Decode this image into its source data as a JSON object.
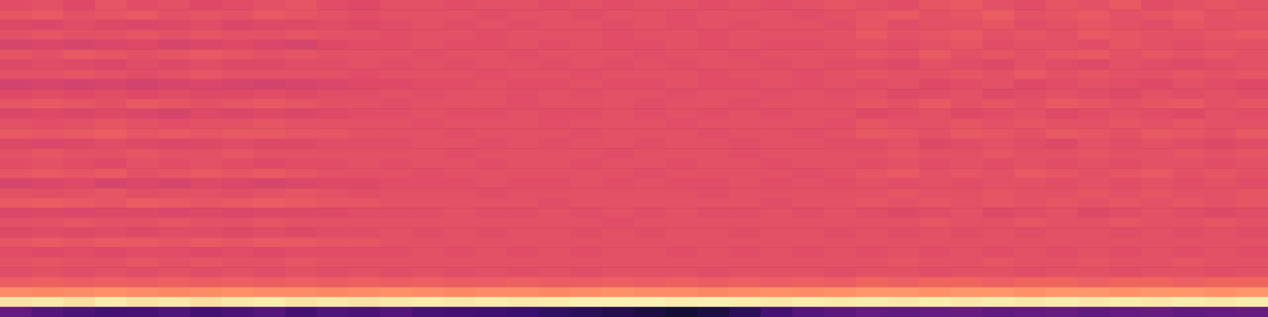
{
  "chart_data": {
    "type": "heatmap",
    "color": "magma",
    "color_range": [
      0,
      100
    ],
    "tick_labels": false,
    "grid": false,
    "cells": [
      [
        61,
        62,
        60,
        63,
        61,
        62,
        60,
        61,
        62,
        63,
        61,
        60,
        62,
        62,
        61,
        62,
        62,
        61,
        62,
        61,
        62,
        62,
        61,
        62,
        61,
        62,
        63,
        62,
        61,
        63,
        64,
        62,
        61,
        63,
        62,
        64,
        61,
        62,
        63,
        62
      ],
      [
        63,
        64,
        62,
        63,
        64,
        62,
        63,
        62,
        64,
        63,
        62,
        61,
        62,
        62,
        62,
        61,
        62,
        62,
        61,
        62,
        62,
        61,
        62,
        62,
        62,
        61,
        62,
        63,
        64,
        62,
        63,
        65,
        62,
        63,
        64,
        62,
        63,
        64,
        62,
        63
      ],
      [
        60,
        59,
        61,
        60,
        59,
        60,
        61,
        59,
        60,
        60,
        61,
        60,
        61,
        62,
        61,
        62,
        61,
        62,
        62,
        61,
        62,
        61,
        62,
        61,
        62,
        62,
        61,
        63,
        61,
        62,
        62,
        63,
        61,
        62,
        63,
        62,
        61,
        63,
        62,
        62
      ],
      [
        62,
        63,
        62,
        62,
        63,
        62,
        63,
        62,
        62,
        63,
        62,
        62,
        61,
        62,
        62,
        61,
        62,
        62,
        62,
        61,
        62,
        62,
        61,
        62,
        62,
        62,
        62,
        64,
        62,
        63,
        64,
        62,
        63,
        62,
        64,
        63,
        62,
        62,
        63,
        64
      ],
      [
        58,
        59,
        58,
        59,
        60,
        58,
        59,
        60,
        59,
        58,
        60,
        61,
        61,
        62,
        61,
        61,
        62,
        61,
        62,
        61,
        61,
        62,
        61,
        62,
        61,
        61,
        62,
        62,
        61,
        62,
        63,
        61,
        62,
        62,
        61,
        63,
        62,
        61,
        62,
        62
      ],
      [
        63,
        62,
        64,
        63,
        62,
        63,
        64,
        63,
        62,
        63,
        62,
        62,
        62,
        61,
        62,
        62,
        61,
        62,
        62,
        62,
        61,
        62,
        62,
        61,
        62,
        62,
        62,
        63,
        62,
        64,
        62,
        63,
        62,
        63,
        64,
        62,
        63,
        62,
        63,
        62
      ],
      [
        60,
        61,
        60,
        59,
        61,
        60,
        61,
        60,
        60,
        61,
        61,
        62,
        61,
        62,
        61,
        62,
        62,
        61,
        62,
        61,
        62,
        61,
        62,
        62,
        61,
        62,
        61,
        61,
        60,
        62,
        61,
        60,
        62,
        61,
        60,
        62,
        61,
        60,
        61,
        62
      ],
      [
        62,
        62,
        63,
        62,
        61,
        62,
        63,
        62,
        62,
        62,
        62,
        61,
        62,
        62,
        62,
        61,
        62,
        62,
        61,
        62,
        62,
        62,
        61,
        62,
        62,
        61,
        62,
        63,
        62,
        62,
        63,
        62,
        64,
        62,
        63,
        62,
        62,
        63,
        62,
        63
      ],
      [
        57,
        58,
        57,
        58,
        57,
        58,
        59,
        58,
        57,
        58,
        59,
        60,
        60,
        61,
        61,
        62,
        61,
        61,
        62,
        61,
        61,
        62,
        61,
        61,
        62,
        61,
        62,
        61,
        62,
        60,
        61,
        62,
        60,
        61,
        62,
        61,
        60,
        62,
        61,
        60
      ],
      [
        60,
        61,
        60,
        61,
        60,
        61,
        60,
        60,
        61,
        60,
        61,
        61,
        62,
        61,
        62,
        62,
        61,
        62,
        61,
        62,
        62,
        61,
        62,
        62,
        61,
        62,
        61,
        62,
        60,
        61,
        62,
        60,
        61,
        62,
        61,
        60,
        62,
        61,
        62,
        61
      ],
      [
        63,
        64,
        63,
        62,
        64,
        63,
        62,
        63,
        64,
        63,
        62,
        62,
        61,
        62,
        62,
        62,
        61,
        62,
        62,
        62,
        61,
        62,
        62,
        61,
        62,
        62,
        62,
        63,
        62,
        64,
        62,
        63,
        62,
        64,
        63,
        62,
        63,
        64,
        62,
        63
      ],
      [
        59,
        60,
        59,
        60,
        59,
        58,
        60,
        59,
        60,
        59,
        60,
        61,
        61,
        62,
        61,
        61,
        62,
        61,
        61,
        62,
        61,
        62,
        61,
        62,
        61,
        62,
        62,
        60,
        61,
        62,
        60,
        61,
        62,
        60,
        61,
        62,
        61,
        60,
        62,
        61
      ],
      [
        62,
        61,
        62,
        63,
        62,
        61,
        62,
        62,
        63,
        62,
        62,
        62,
        62,
        61,
        62,
        62,
        62,
        61,
        62,
        62,
        62,
        61,
        62,
        62,
        62,
        62,
        61,
        63,
        62,
        62,
        63,
        62,
        63,
        62,
        62,
        63,
        62,
        63,
        62,
        62
      ],
      [
        64,
        63,
        64,
        65,
        63,
        64,
        63,
        64,
        64,
        63,
        63,
        62,
        62,
        62,
        61,
        62,
        62,
        62,
        61,
        62,
        62,
        62,
        61,
        62,
        62,
        61,
        62,
        64,
        63,
        62,
        64,
        63,
        62,
        64,
        63,
        62,
        64,
        63,
        62,
        64
      ],
      [
        60,
        59,
        60,
        61,
        60,
        59,
        60,
        61,
        60,
        60,
        61,
        61,
        61,
        62,
        62,
        61,
        62,
        61,
        62,
        62,
        61,
        62,
        62,
        61,
        62,
        62,
        61,
        61,
        62,
        60,
        61,
        62,
        61,
        60,
        62,
        61,
        62,
        61,
        60,
        61
      ],
      [
        62,
        63,
        62,
        62,
        63,
        62,
        62,
        63,
        62,
        62,
        62,
        62,
        62,
        62,
        61,
        62,
        62,
        62,
        62,
        61,
        62,
        62,
        62,
        61,
        62,
        62,
        62,
        62,
        63,
        62,
        62,
        63,
        62,
        62,
        63,
        62,
        62,
        63,
        62,
        63
      ],
      [
        61,
        62,
        61,
        60,
        62,
        61,
        62,
        61,
        60,
        61,
        61,
        62,
        61,
        62,
        62,
        61,
        62,
        62,
        61,
        62,
        62,
        61,
        62,
        62,
        61,
        62,
        62,
        61,
        62,
        61,
        62,
        61,
        62,
        61,
        62,
        61,
        62,
        62,
        61,
        62
      ],
      [
        63,
        64,
        63,
        64,
        62,
        63,
        64,
        63,
        64,
        63,
        62,
        62,
        62,
        61,
        62,
        62,
        62,
        62,
        62,
        62,
        61,
        62,
        62,
        62,
        62,
        61,
        62,
        63,
        64,
        62,
        63,
        62,
        64,
        63,
        62,
        63,
        64,
        62,
        63,
        62
      ],
      [
        58,
        59,
        60,
        58,
        59,
        58,
        60,
        59,
        58,
        59,
        60,
        60,
        61,
        61,
        61,
        62,
        61,
        61,
        62,
        61,
        62,
        61,
        61,
        62,
        61,
        62,
        61,
        62,
        61,
        62,
        61,
        62,
        62,
        61,
        62,
        61,
        62,
        61,
        62,
        61
      ],
      [
        62,
        61,
        62,
        63,
        61,
        62,
        62,
        61,
        62,
        63,
        62,
        61,
        62,
        62,
        62,
        61,
        62,
        62,
        62,
        62,
        62,
        62,
        61,
        62,
        62,
        62,
        62,
        62,
        63,
        62,
        62,
        63,
        62,
        62,
        63,
        62,
        63,
        62,
        62,
        63
      ],
      [
        64,
        65,
        64,
        63,
        65,
        64,
        63,
        64,
        65,
        64,
        63,
        63,
        62,
        62,
        62,
        62,
        62,
        61,
        62,
        62,
        62,
        62,
        62,
        62,
        61,
        62,
        62,
        63,
        62,
        63,
        62,
        63,
        62,
        63,
        62,
        63,
        62,
        63,
        62,
        63
      ],
      [
        59,
        60,
        59,
        60,
        60,
        59,
        60,
        59,
        60,
        60,
        60,
        61,
        61,
        61,
        62,
        61,
        61,
        62,
        61,
        62,
        61,
        62,
        61,
        61,
        62,
        61,
        62,
        61,
        60,
        61,
        62,
        60,
        61,
        62,
        60,
        61,
        62,
        61,
        60,
        61
      ],
      [
        62,
        62,
        63,
        62,
        62,
        63,
        62,
        62,
        63,
        62,
        62,
        62,
        62,
        62,
        62,
        62,
        62,
        62,
        62,
        61,
        62,
        62,
        62,
        62,
        62,
        62,
        62,
        62,
        62,
        63,
        62,
        62,
        63,
        62,
        62,
        63,
        62,
        62,
        63,
        62
      ],
      [
        60,
        61,
        60,
        61,
        60,
        61,
        61,
        60,
        61,
        60,
        61,
        61,
        62,
        61,
        62,
        61,
        62,
        62,
        61,
        62,
        61,
        62,
        62,
        61,
        62,
        62,
        61,
        62,
        61,
        62,
        61,
        62,
        61,
        62,
        62,
        61,
        62,
        61,
        62,
        61
      ],
      [
        63,
        64,
        63,
        64,
        64,
        63,
        64,
        63,
        64,
        64,
        63,
        63,
        62,
        62,
        62,
        62,
        62,
        62,
        62,
        62,
        62,
        62,
        62,
        62,
        62,
        62,
        62,
        62,
        62,
        62,
        62,
        62,
        62,
        62,
        62,
        62,
        62,
        62,
        62,
        62
      ],
      [
        61,
        60,
        61,
        60,
        61,
        61,
        60,
        61,
        60,
        61,
        61,
        61,
        61,
        62,
        61,
        62,
        61,
        62,
        61,
        62,
        62,
        61,
        62,
        61,
        62,
        61,
        62,
        61,
        62,
        61,
        62,
        61,
        62,
        61,
        62,
        61,
        62,
        61,
        62,
        61
      ],
      [
        62,
        63,
        62,
        62,
        63,
        62,
        63,
        62,
        62,
        63,
        62,
        62,
        62,
        62,
        62,
        62,
        62,
        62,
        62,
        62,
        62,
        62,
        62,
        62,
        62,
        62,
        62,
        62,
        63,
        62,
        62,
        63,
        62,
        62,
        63,
        62,
        62,
        63,
        62,
        62
      ],
      [
        61,
        62,
        61,
        62,
        61,
        62,
        61,
        62,
        61,
        62,
        61,
        62,
        61,
        62,
        61,
        62,
        61,
        62,
        61,
        62,
        62,
        62,
        61,
        62,
        62,
        62,
        61,
        62,
        62,
        61,
        62,
        62,
        61,
        62,
        62,
        61,
        62,
        62,
        61,
        62
      ],
      [
        65,
        66,
        65,
        66,
        65,
        66,
        65,
        66,
        65,
        66,
        65,
        66,
        65,
        66,
        65,
        65,
        66,
        65,
        65,
        66,
        65,
        66,
        65,
        66,
        65,
        66,
        65,
        67,
        66,
        67,
        67,
        66,
        67,
        67,
        66,
        67,
        67,
        66,
        67,
        67
      ],
      [
        76,
        75,
        76,
        77,
        76,
        75,
        76,
        77,
        76,
        76,
        75,
        76,
        77,
        76,
        75,
        76,
        76,
        75,
        76,
        77,
        76,
        76,
        75,
        76,
        77,
        76,
        77,
        78,
        78,
        77,
        78,
        78,
        77,
        78,
        78,
        77,
        78,
        78,
        77,
        78
      ],
      [
        94,
        95,
        93,
        96,
        94,
        95,
        93,
        95,
        96,
        94,
        95,
        94,
        95,
        96,
        95,
        96,
        95,
        96,
        97,
        97,
        97,
        96,
        97,
        96,
        95,
        96,
        95,
        96,
        95,
        96,
        95,
        96,
        95,
        96,
        95,
        96,
        95,
        96,
        95,
        96
      ],
      [
        30,
        26,
        24,
        22,
        23,
        25,
        22,
        24,
        26,
        22,
        25,
        24,
        26,
        23,
        22,
        21,
        20,
        18,
        16,
        14,
        12,
        10,
        12,
        16,
        22,
        26,
        28,
        30,
        29,
        30,
        31,
        29,
        30,
        31,
        29,
        30,
        31,
        29,
        30,
        31
      ]
    ]
  }
}
